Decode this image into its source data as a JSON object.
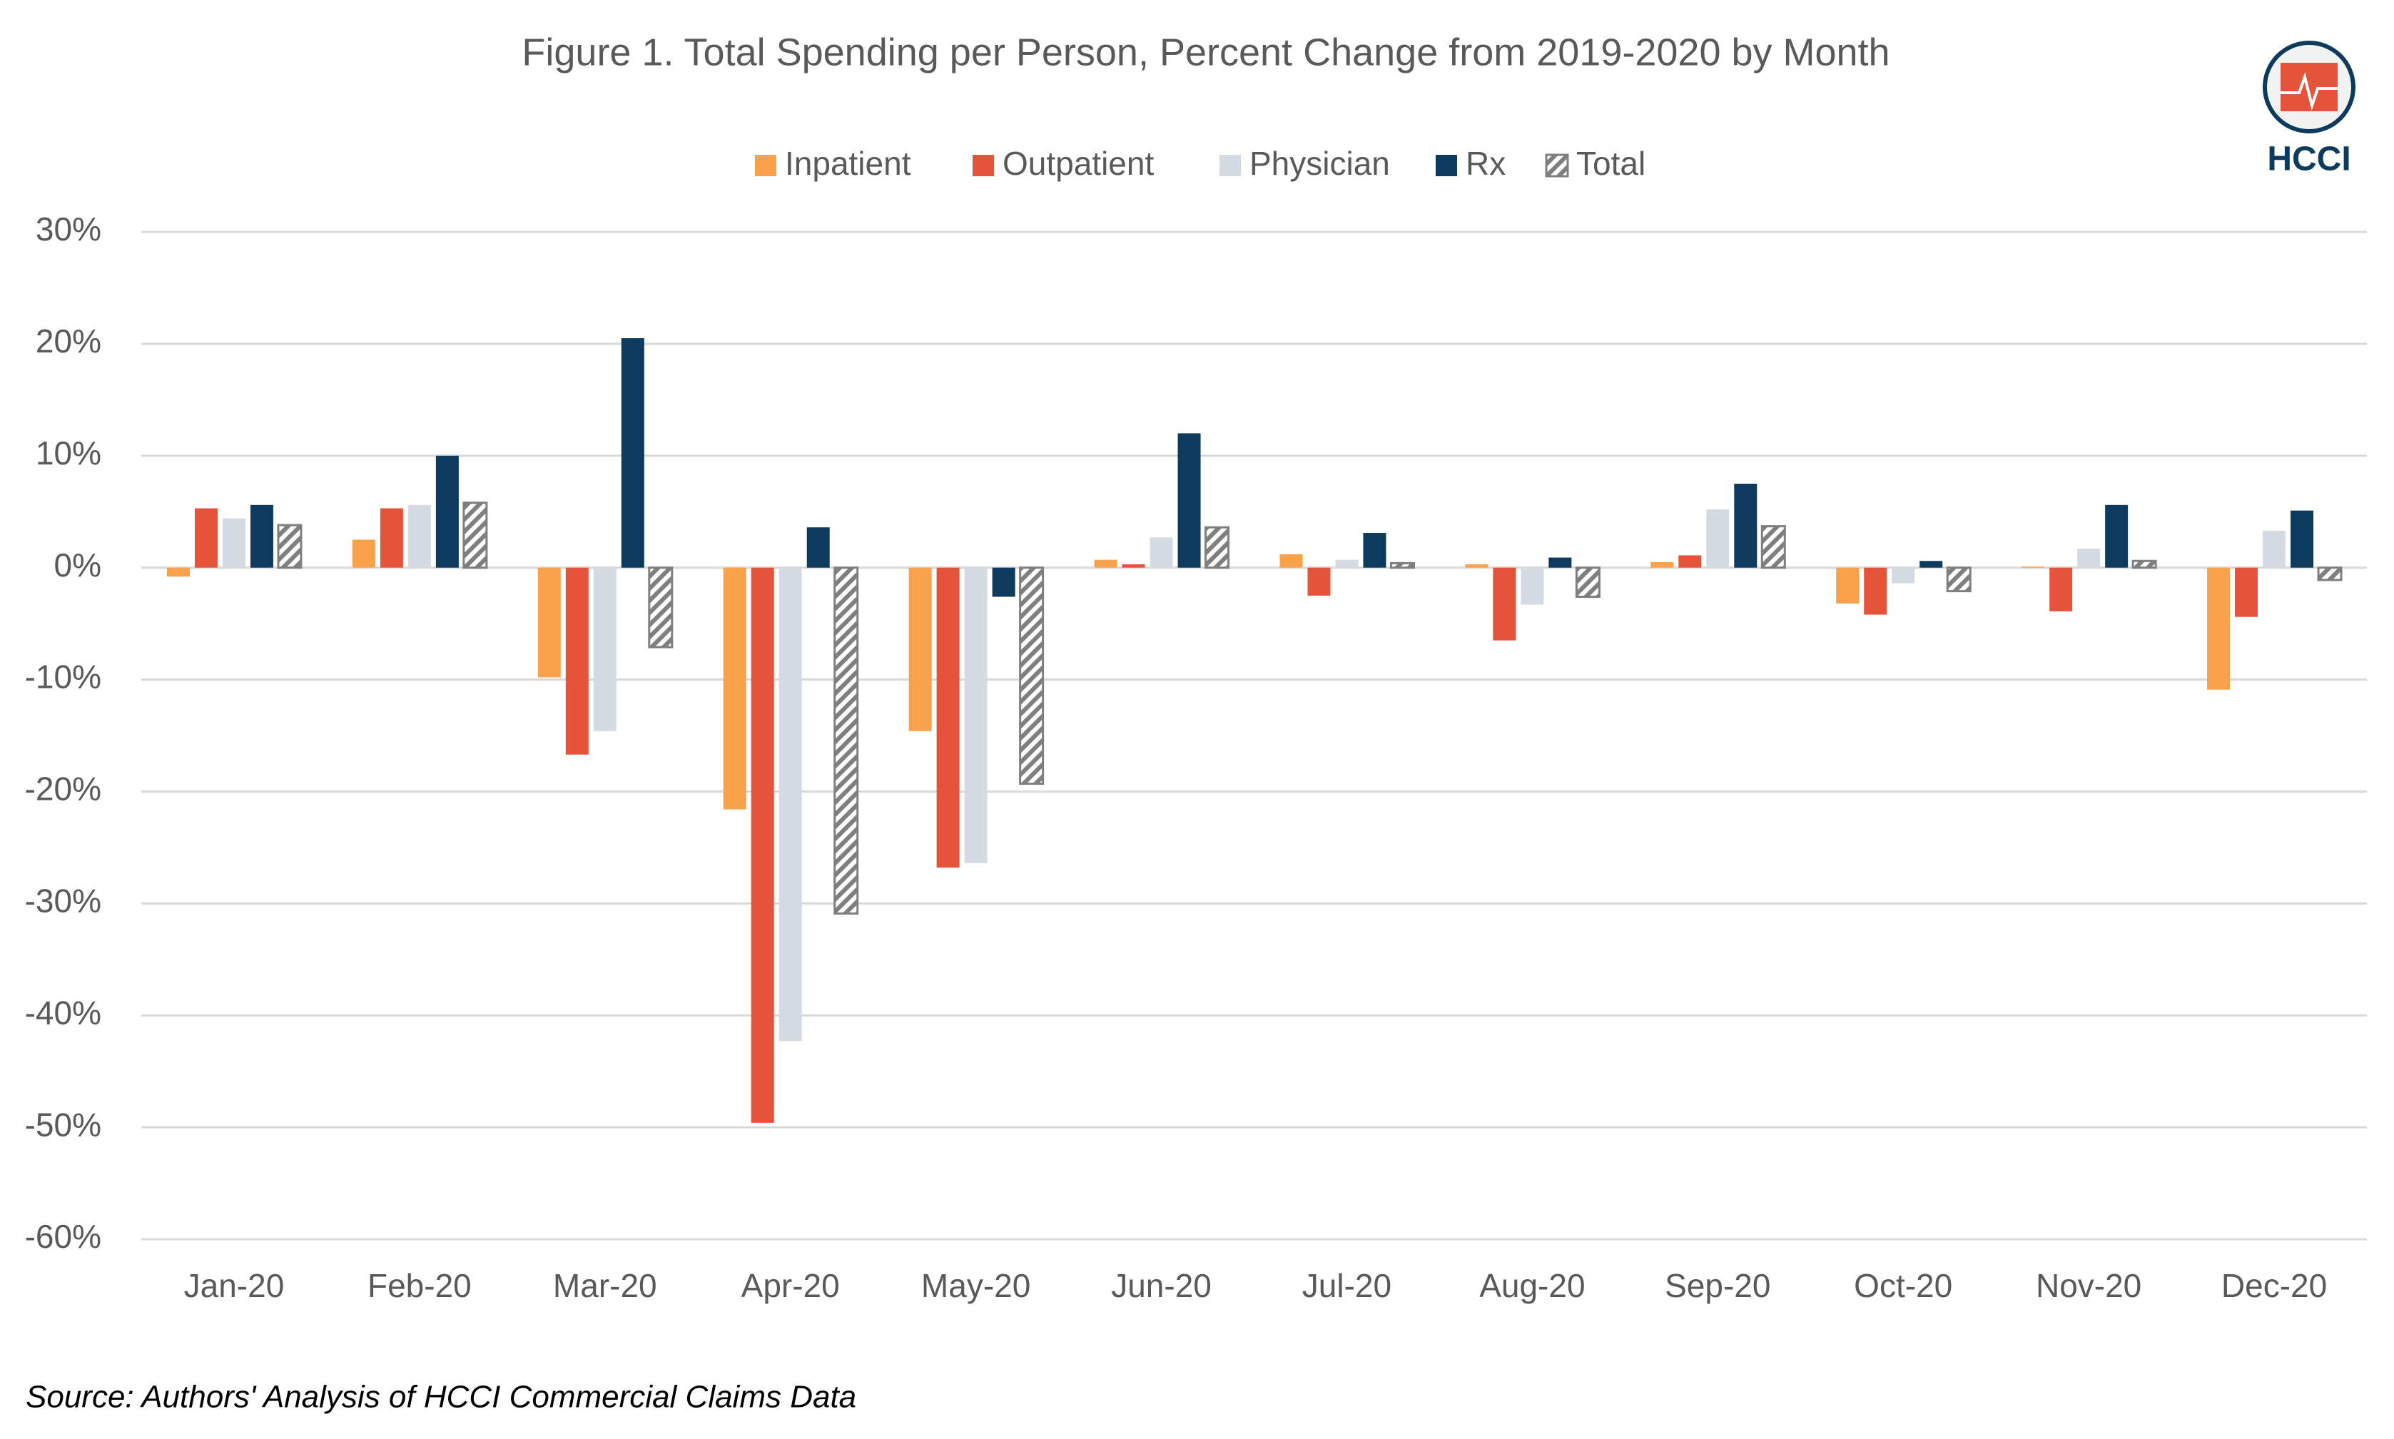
{
  "chart_data": {
    "type": "bar",
    "title": "Figure 1. Total Spending per Person, Percent Change from 2019-2020 by Month",
    "logo": "HCCI",
    "source": "Source: Authors' Analysis of HCCI Commercial Claims Data",
    "categories": [
      "Jan-20",
      "Feb-20",
      "Mar-20",
      "Apr-20",
      "May-20",
      "Jun-20",
      "Jul-20",
      "Aug-20",
      "Sep-20",
      "Oct-20",
      "Nov-20",
      "Dec-20"
    ],
    "series": [
      {
        "name": "Inpatient",
        "color": "#f9a24b",
        "values": [
          -0.8,
          2.5,
          -9.8,
          -21.6,
          -14.6,
          0.7,
          1.2,
          0.3,
          0.5,
          -3.2,
          0.1,
          -10.9
        ]
      },
      {
        "name": "Outpatient",
        "color": "#e5533a",
        "values": [
          5.3,
          5.3,
          -16.7,
          -49.6,
          -26.8,
          0.3,
          -2.5,
          -6.5,
          1.1,
          -4.2,
          -3.9,
          -4.4
        ]
      },
      {
        "name": "Physician",
        "color": "#d5dbe2",
        "values": [
          4.4,
          5.6,
          -14.6,
          -42.3,
          -26.4,
          2.7,
          0.7,
          -3.3,
          5.2,
          -1.4,
          1.7,
          3.3
        ]
      },
      {
        "name": "Rx",
        "color": "#0c3b5e",
        "values": [
          5.6,
          10.0,
          20.5,
          3.6,
          -2.6,
          12.0,
          3.1,
          0.9,
          7.5,
          0.6,
          5.6,
          5.1
        ]
      },
      {
        "name": "Total",
        "color": "#7f7f7f",
        "pattern": "hatch",
        "values": [
          3.8,
          5.8,
          -7.1,
          -30.9,
          -19.3,
          3.6,
          0.4,
          -2.6,
          3.7,
          -2.1,
          0.6,
          -1.1
        ]
      }
    ],
    "ylim": [
      -60,
      30
    ],
    "yticks": [
      {
        "value": -60,
        "label": "-60%"
      },
      {
        "value": -50,
        "label": "-50%"
      },
      {
        "value": -40,
        "label": "-40%"
      },
      {
        "value": -30,
        "label": "-30%"
      },
      {
        "value": -20,
        "label": "-20%"
      },
      {
        "value": -10,
        "label": "-10%"
      },
      {
        "value": 0,
        "label": "0%"
      },
      {
        "value": 10,
        "label": "10%"
      },
      {
        "value": 20,
        "label": "20%"
      },
      {
        "value": 30,
        "label": "30%"
      }
    ],
    "grid": true,
    "legend": "top"
  }
}
